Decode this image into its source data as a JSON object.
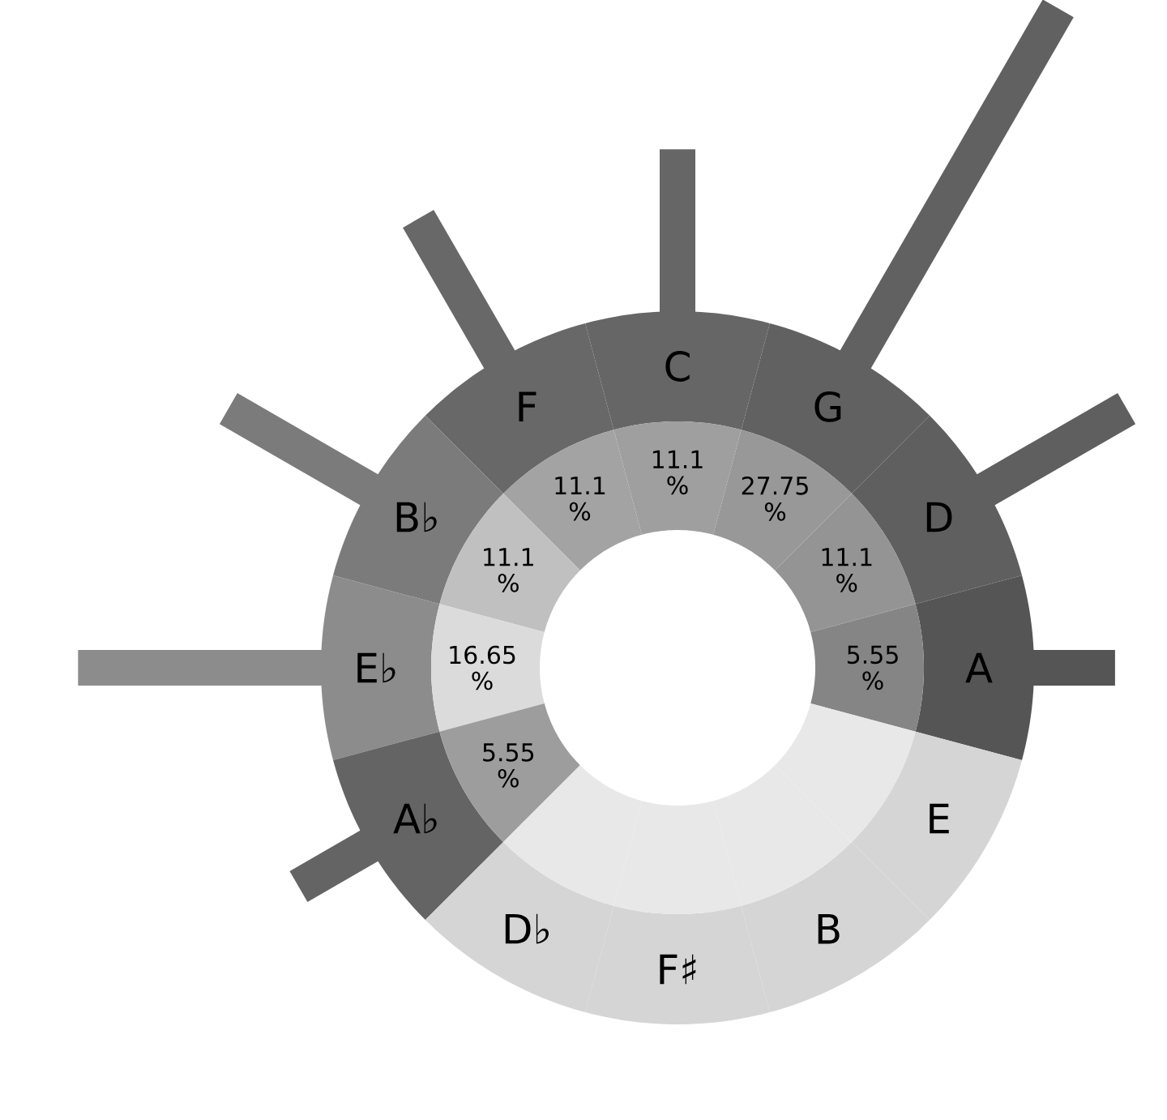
{
  "chart_data": {
    "type": "other",
    "categories": [
      "A",
      "D",
      "G",
      "C",
      "F",
      "B♭",
      "E♭",
      "A♭",
      "D♭",
      "F♯",
      "B",
      "E"
    ],
    "values": [
      5.55,
      11.1,
      27.75,
      11.1,
      11.1,
      11.1,
      16.65,
      5.55,
      null,
      null,
      null,
      null
    ],
    "value_labels": [
      "5.55 %",
      "11.1 %",
      "27.75 %",
      "11.1 %",
      "11.1 %",
      "11.1 %",
      "16.65 %",
      "5.55 %",
      null,
      null,
      null,
      null
    ],
    "colors": [
      "#858585",
      "#949494",
      "#989898",
      "#9f9f9f",
      "#a3a3a3",
      "#c0c0c0",
      "#dbdbdb",
      "#9d9d9d",
      "#e8e8e8",
      "#e8e8e8",
      "#e8e8e8",
      "#e8e8e8"
    ]
  }
}
